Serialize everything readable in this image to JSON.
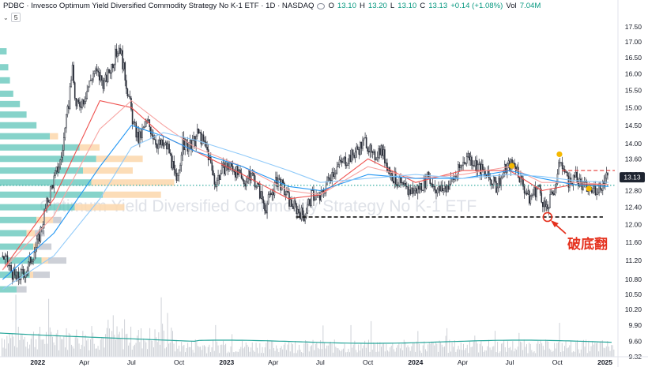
{
  "header": {
    "title": "PDBC · Invesco Optimum Yield Diversified Commodity Strategy No K-1 ETF · 1D · NASDAQ",
    "o_label": "O",
    "o": "13.10",
    "h_label": "H",
    "h": "13.20",
    "l_label": "L",
    "l": "13.10",
    "c_label": "C",
    "c": "13.13",
    "change": "+0.14 (+1.08%)",
    "vol_label": "Vol",
    "vol": "7.04M"
  },
  "indicators": {
    "count": "5"
  },
  "watermark": "Optimum Yield Diversified Commodity Strategy No K-1 ETF",
  "annotation": {
    "text": "破底翻",
    "color": "#e5311e"
  },
  "price_badge": {
    "value": "13.13",
    "color": "#1e2430"
  },
  "colors": {
    "up": "#089981",
    "candle": "#2a2e39",
    "ma_red": "#ef5350",
    "ma_pink": "#f7a3a1",
    "ma_blue": "#2196f3",
    "ma_lightblue": "#90caf9",
    "dot": "#f5b800",
    "vp_teal": "#5ec4b8",
    "vp_orange": "#fcd9b0",
    "vp_gray": "#b8bcc6",
    "volume": "#c9ccd3",
    "vol_ma": "#26a69a"
  },
  "chart_data": {
    "type": "candlestick",
    "y_axis": {
      "ticks": [
        9.32,
        9.6,
        9.9,
        10.2,
        10.5,
        10.8,
        11.2,
        11.6,
        12.0,
        12.4,
        12.8,
        13.2,
        13.6,
        14.0,
        14.5,
        15.0,
        15.5,
        16.0,
        16.5,
        17.0,
        17.5
      ],
      "tick_labels": [
        "9.32",
        "9.60",
        "9.90",
        "10.20",
        "10.50",
        "10.80",
        "11.20",
        "11.60",
        "12.00",
        "12.40",
        "12.80",
        "13.20",
        "13.60",
        "14.00",
        "14.50",
        "15.00",
        "15.50",
        "16.00",
        "16.50",
        "17.00",
        "17.50"
      ],
      "scale": "log"
    },
    "x_axis": {
      "ticks": [
        "2022-01-01",
        "2022-04-01",
        "2022-07-01",
        "2022-10-01",
        "2023-01-01",
        "2023-04-01",
        "2023-07-01",
        "2023-10-01",
        "2024-01-01",
        "2024-04-01",
        "2024-07-01",
        "2024-10-01",
        "2025-01-01"
      ],
      "tick_labels": [
        "2022",
        "Apr",
        "Jul",
        "Oct",
        "2023",
        "Apr",
        "Jul",
        "Oct",
        "2024",
        "Apr",
        "Jul",
        "Oct",
        "2025"
      ],
      "range": [
        "2021-10-20",
        "2025-01-20"
      ]
    },
    "price_path": [
      [
        "2021-10-25",
        11.3
      ],
      [
        "2021-11-20",
        10.8
      ],
      [
        "2021-12-10",
        11.0
      ],
      [
        "2022-01-01",
        11.6
      ],
      [
        "2022-01-25",
        12.8
      ],
      [
        "2022-02-15",
        13.6
      ],
      [
        "2022-03-01",
        15.0
      ],
      [
        "2022-03-08",
        16.2
      ],
      [
        "2022-03-16",
        15.0
      ],
      [
        "2022-04-01",
        15.3
      ],
      [
        "2022-04-20",
        16.1
      ],
      [
        "2022-05-10",
        15.7
      ],
      [
        "2022-06-08",
        16.9
      ],
      [
        "2022-06-20",
        15.8
      ],
      [
        "2022-07-05",
        14.5
      ],
      [
        "2022-07-15",
        14.1
      ],
      [
        "2022-08-01",
        14.6
      ],
      [
        "2022-08-20",
        14.0
      ],
      [
        "2022-09-10",
        13.9
      ],
      [
        "2022-09-27",
        12.9
      ],
      [
        "2022-10-07",
        14.0
      ],
      [
        "2022-10-25",
        13.9
      ],
      [
        "2022-11-07",
        14.3
      ],
      [
        "2022-11-25",
        13.8
      ],
      [
        "2022-12-09",
        13.0
      ],
      [
        "2022-12-28",
        13.4
      ],
      [
        "2023-01-13",
        13.4
      ],
      [
        "2023-02-01",
        13.0
      ],
      [
        "2023-02-20",
        13.2
      ],
      [
        "2023-03-17",
        12.4
      ],
      [
        "2023-04-10",
        13.1
      ],
      [
        "2023-05-04",
        12.5
      ],
      [
        "2023-05-31",
        12.2
      ],
      [
        "2023-06-15",
        12.7
      ],
      [
        "2023-07-01",
        12.6
      ],
      [
        "2023-07-20",
        13.2
      ],
      [
        "2023-08-10",
        13.5
      ],
      [
        "2023-09-01",
        13.7
      ],
      [
        "2023-09-27",
        14.1
      ],
      [
        "2023-10-10",
        13.6
      ],
      [
        "2023-10-25",
        13.9
      ],
      [
        "2023-11-15",
        13.2
      ],
      [
        "2023-12-12",
        12.8
      ],
      [
        "2024-01-01",
        12.8
      ],
      [
        "2024-01-25",
        13.1
      ],
      [
        "2024-02-15",
        12.8
      ],
      [
        "2024-03-01",
        12.9
      ],
      [
        "2024-03-20",
        13.2
      ],
      [
        "2024-04-10",
        13.7
      ],
      [
        "2024-04-25",
        13.5
      ],
      [
        "2024-05-15",
        13.2
      ],
      [
        "2024-06-05",
        12.9
      ],
      [
        "2024-06-25",
        13.4
      ],
      [
        "2024-07-10",
        13.5
      ],
      [
        "2024-07-25",
        13.0
      ],
      [
        "2024-08-07",
        12.6
      ],
      [
        "2024-08-25",
        12.9
      ],
      [
        "2024-09-10",
        12.3
      ],
      [
        "2024-09-18",
        12.6
      ],
      [
        "2024-10-01",
        13.1
      ],
      [
        "2024-10-07",
        13.7
      ],
      [
        "2024-10-20",
        13.0
      ],
      [
        "2024-11-05",
        13.1
      ],
      [
        "2024-11-20",
        12.9
      ],
      [
        "2024-12-05",
        12.8
      ],
      [
        "2024-12-20",
        12.9
      ],
      [
        "2025-01-08",
        13.13
      ]
    ],
    "moving_averages": [
      {
        "color": "red",
        "points": [
          [
            "2021-10-25",
            11.0
          ],
          [
            "2022-02-01",
            12.6
          ],
          [
            "2022-05-01",
            15.2
          ],
          [
            "2022-07-01",
            15.0
          ],
          [
            "2022-09-01",
            14.2
          ],
          [
            "2022-11-01",
            13.8
          ],
          [
            "2023-02-01",
            13.2
          ],
          [
            "2023-05-01",
            12.6
          ],
          [
            "2023-07-01",
            12.7
          ],
          [
            "2023-10-01",
            13.6
          ],
          [
            "2024-01-01",
            13.0
          ],
          [
            "2024-04-01",
            13.3
          ],
          [
            "2024-07-01",
            13.3
          ],
          [
            "2024-09-01",
            12.8
          ],
          [
            "2024-11-01",
            12.95
          ],
          [
            "2025-01-08",
            12.95
          ]
        ]
      },
      {
        "color": "pink",
        "points": [
          [
            "2021-10-25",
            11.0
          ],
          [
            "2022-02-01",
            12.2
          ],
          [
            "2022-05-01",
            14.4
          ],
          [
            "2022-07-01",
            15.2
          ],
          [
            "2022-09-01",
            14.5
          ],
          [
            "2022-11-01",
            13.9
          ],
          [
            "2023-02-01",
            13.4
          ],
          [
            "2023-05-01",
            12.8
          ],
          [
            "2023-07-01",
            12.7
          ],
          [
            "2023-10-01",
            13.4
          ],
          [
            "2024-01-01",
            13.1
          ],
          [
            "2024-04-01",
            13.2
          ],
          [
            "2024-07-01",
            13.4
          ],
          [
            "2024-09-01",
            13.0
          ],
          [
            "2024-11-01",
            13.0
          ],
          [
            "2025-01-08",
            12.95
          ]
        ]
      },
      {
        "color": "blue",
        "points": [
          [
            "2021-10-25",
            10.8
          ],
          [
            "2022-02-01",
            11.8
          ],
          [
            "2022-05-01",
            13.4
          ],
          [
            "2022-07-01",
            14.5
          ],
          [
            "2022-09-01",
            14.2
          ],
          [
            "2022-11-01",
            13.8
          ],
          [
            "2023-02-01",
            13.4
          ],
          [
            "2023-05-01",
            12.9
          ],
          [
            "2023-07-01",
            12.8
          ],
          [
            "2023-10-01",
            13.2
          ],
          [
            "2024-01-01",
            13.1
          ],
          [
            "2024-04-01",
            13.1
          ],
          [
            "2024-07-01",
            13.3
          ],
          [
            "2024-09-01",
            13.1
          ],
          [
            "2024-11-01",
            12.95
          ],
          [
            "2025-01-08",
            12.9
          ]
        ]
      },
      {
        "color": "lightblue",
        "points": [
          [
            "2021-10-25",
            10.6
          ],
          [
            "2022-02-01",
            11.3
          ],
          [
            "2022-05-01",
            12.6
          ],
          [
            "2022-07-01",
            13.9
          ],
          [
            "2022-09-01",
            14.3
          ],
          [
            "2022-11-01",
            14.1
          ],
          [
            "2023-02-01",
            13.7
          ],
          [
            "2023-05-01",
            13.3
          ],
          [
            "2023-07-01",
            13.0
          ],
          [
            "2023-10-01",
            13.1
          ],
          [
            "2024-01-01",
            13.2
          ],
          [
            "2024-04-01",
            13.1
          ],
          [
            "2024-07-01",
            13.2
          ],
          [
            "2024-09-01",
            13.15
          ],
          [
            "2024-11-01",
            13.05
          ],
          [
            "2025-01-08",
            13.0
          ]
        ]
      }
    ],
    "horizontal_lines": [
      {
        "style": "dotted",
        "color": "teal",
        "y": 12.93,
        "from": "2021-10-20",
        "to": "2025-01-20"
      },
      {
        "style": "dashed",
        "color": "black",
        "y": 12.17,
        "from": "2023-05-15",
        "to": "2024-12-28"
      },
      {
        "style": "dashed",
        "color": "red",
        "y": 13.3,
        "from": "2024-10-10",
        "to": "2025-01-20"
      }
    ],
    "markers": [
      {
        "date": "2024-07-05",
        "y": 13.42,
        "type": "dot"
      },
      {
        "date": "2024-10-05",
        "y": 13.72,
        "type": "dot"
      },
      {
        "date": "2024-12-01",
        "y": 12.85,
        "type": "dot"
      },
      {
        "date": "2024-09-12",
        "y": 12.17,
        "type": "circle"
      }
    ],
    "volume_profile": [
      {
        "price": 10.6,
        "teal": 0.1,
        "orange": 0.0,
        "gray": 0.06
      },
      {
        "price": 10.9,
        "teal": 0.18,
        "orange": 0.02,
        "gray": 0.1
      },
      {
        "price": 11.2,
        "teal": 0.25,
        "orange": 0.04,
        "gray": 0.11
      },
      {
        "price": 11.5,
        "teal": 0.2,
        "orange": 0.03,
        "gray": 0.08
      },
      {
        "price": 11.8,
        "teal": 0.16,
        "orange": 0.05,
        "gray": 0.06
      },
      {
        "price": 12.1,
        "teal": 0.22,
        "orange": 0.1,
        "gray": 0.05
      },
      {
        "price": 12.4,
        "teal": 0.45,
        "orange": 0.3,
        "gray": 0.0
      },
      {
        "price": 12.7,
        "teal": 0.62,
        "orange": 0.35,
        "gray": 0.0
      },
      {
        "price": 13.0,
        "teal": 0.55,
        "orange": 0.5,
        "gray": 0.0
      },
      {
        "price": 13.3,
        "teal": 0.5,
        "orange": 0.3,
        "gray": 0.0
      },
      {
        "price": 13.6,
        "teal": 0.58,
        "orange": 0.28,
        "gray": 0.0
      },
      {
        "price": 13.9,
        "teal": 0.48,
        "orange": 0.12,
        "gray": 0.0
      },
      {
        "price": 14.2,
        "teal": 0.3,
        "orange": 0.05,
        "gray": 0.0
      },
      {
        "price": 14.5,
        "teal": 0.22,
        "orange": 0.0,
        "gray": 0.0
      },
      {
        "price": 14.8,
        "teal": 0.16,
        "orange": 0.0,
        "gray": 0.0
      },
      {
        "price": 15.1,
        "teal": 0.12,
        "orange": 0.0,
        "gray": 0.0
      },
      {
        "price": 15.4,
        "teal": 0.08,
        "orange": 0.0,
        "gray": 0.0
      },
      {
        "price": 15.8,
        "teal": 0.06,
        "orange": 0.0,
        "gray": 0.0
      },
      {
        "price": 16.2,
        "teal": 0.05,
        "orange": 0.0,
        "gray": 0.0
      },
      {
        "price": 16.7,
        "teal": 0.04,
        "orange": 0.0,
        "gray": 0.0
      }
    ]
  }
}
